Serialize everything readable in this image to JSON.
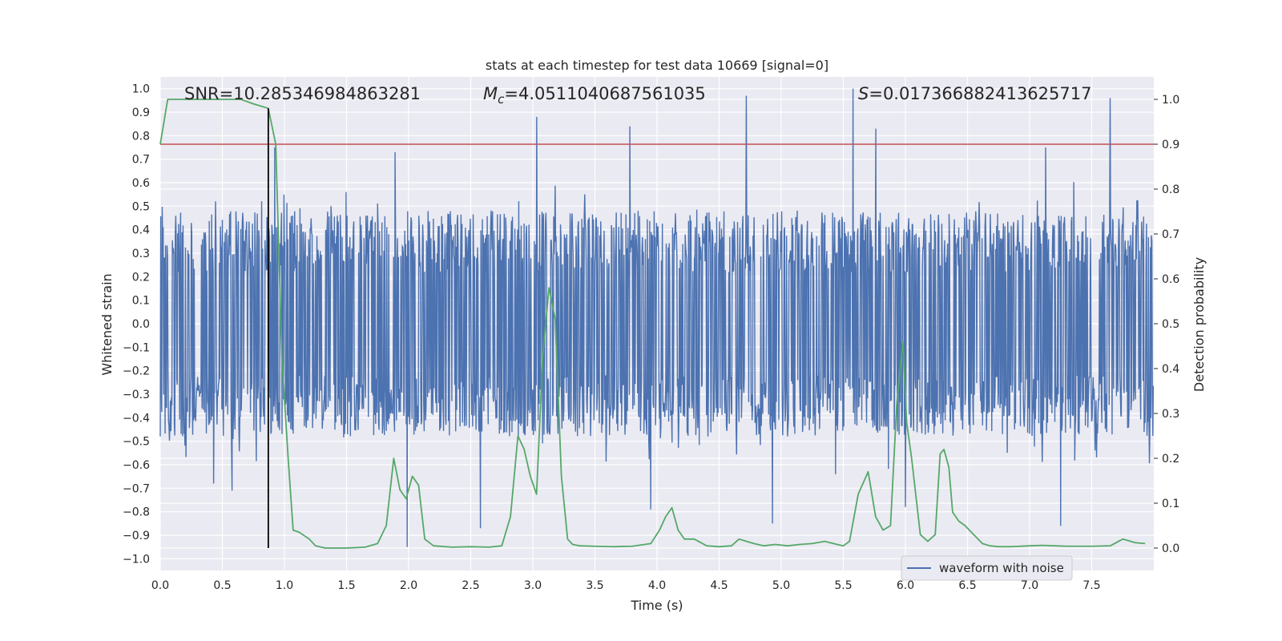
{
  "chart_data": {
    "type": "line",
    "title": "stats at each timestep for test data 10669 [signal=0]",
    "xlabel": "Time (s)",
    "ylabel_left": "Whitened strain",
    "ylabel_right": "Detection probability",
    "xlim": [
      0,
      8
    ],
    "ylim_left": [
      -1.05,
      1.05
    ],
    "ylim_right": [
      -0.05,
      1.05
    ],
    "x_ticks": [
      "0.0",
      "0.5",
      "1.0",
      "1.5",
      "2.0",
      "2.5",
      "3.0",
      "3.5",
      "4.0",
      "4.5",
      "5.0",
      "5.5",
      "6.0",
      "6.5",
      "7.0",
      "7.5"
    ],
    "x_tick_values": [
      0,
      0.5,
      1,
      1.5,
      2,
      2.5,
      3,
      3.5,
      4,
      4.5,
      5,
      5.5,
      6,
      6.5,
      7,
      7.5
    ],
    "y_ticks_left": [
      "1.0",
      "0.9",
      "0.8",
      "0.7",
      "0.6",
      "0.5",
      "0.4",
      "0.3",
      "0.2",
      "0.1",
      "0.0",
      "−0.1",
      "−0.2",
      "−0.3",
      "−0.4",
      "−0.5",
      "−0.6",
      "−0.7",
      "−0.8",
      "−0.9",
      "−1.0"
    ],
    "y_tick_values_left": [
      1,
      0.9,
      0.8,
      0.7,
      0.6,
      0.5,
      0.4,
      0.3,
      0.2,
      0.1,
      0,
      -0.1,
      -0.2,
      -0.3,
      -0.4,
      -0.5,
      -0.6,
      -0.7,
      -0.8,
      -0.9,
      -1
    ],
    "y_ticks_right": [
      "1.0",
      "0.9",
      "0.8",
      "0.7",
      "0.6",
      "0.5",
      "0.4",
      "0.3",
      "0.2",
      "0.1",
      "0.0"
    ],
    "y_tick_values_right": [
      1,
      0.9,
      0.8,
      0.7,
      0.6,
      0.5,
      0.4,
      0.3,
      0.2,
      0.1,
      0
    ],
    "grid": true,
    "legend_position": "bottom-right",
    "annotations": {
      "snr": "SNR=10.285346984863281",
      "mc_symbol": "M",
      "mc_subscript": "c",
      "mc_value": "=4.0511040687561035",
      "s_symbol": "S",
      "s_value": "=0.017366882413625717"
    },
    "threshold": {
      "value": 0.9,
      "axis": "right",
      "color": "#c44e52"
    },
    "marker_line": {
      "x": 0.87,
      "y_range_right": [
        0,
        0.98
      ],
      "color": "#000000"
    },
    "series": [
      {
        "name": "waveform with noise",
        "axis": "left",
        "color": "#4c72b0",
        "kind": "dense-noise",
        "n_samples": 2048,
        "peaks": [
          {
            "x": 3.03,
            "y": 0.88
          },
          {
            "x": 3.78,
            "y": 0.84
          },
          {
            "x": 4.72,
            "y": 0.97
          },
          {
            "x": 5.58,
            "y": 1.0
          },
          {
            "x": 5.76,
            "y": 0.83
          },
          {
            "x": 7.65,
            "y": 0.96
          },
          {
            "x": 1.89,
            "y": 0.73
          },
          {
            "x": 0.92,
            "y": 0.75
          },
          {
            "x": 7.13,
            "y": 0.75
          }
        ],
        "troughs": [
          {
            "x": 1.99,
            "y": -0.95
          },
          {
            "x": 2.58,
            "y": -0.87
          },
          {
            "x": 4.93,
            "y": -0.85
          },
          {
            "x": 7.25,
            "y": -0.86
          },
          {
            "x": 6.0,
            "y": -0.78
          },
          {
            "x": 3.95,
            "y": -0.79
          },
          {
            "x": 0.58,
            "y": -0.71
          },
          {
            "x": 0.43,
            "y": -0.68
          }
        ]
      },
      {
        "name": "",
        "axis": "right",
        "color": "#55a868",
        "x": [
          0.0,
          0.06,
          0.15,
          0.35,
          0.55,
          0.65,
          0.75,
          0.87,
          0.93,
          0.98,
          1.03,
          1.07,
          1.12,
          1.2,
          1.25,
          1.33,
          1.5,
          1.65,
          1.75,
          1.82,
          1.88,
          1.93,
          1.98,
          2.03,
          2.08,
          2.13,
          2.2,
          2.35,
          2.5,
          2.65,
          2.75,
          2.82,
          2.88,
          2.93,
          2.98,
          3.03,
          3.08,
          3.13,
          3.18,
          3.23,
          3.28,
          3.32,
          3.38,
          3.5,
          3.65,
          3.8,
          3.95,
          4.02,
          4.07,
          4.12,
          4.17,
          4.22,
          4.3,
          4.4,
          4.5,
          4.6,
          4.66,
          4.72,
          4.78,
          4.86,
          4.95,
          5.05,
          5.15,
          5.25,
          5.35,
          5.45,
          5.5,
          5.55,
          5.62,
          5.7,
          5.76,
          5.82,
          5.88,
          5.93,
          5.98,
          6.01,
          6.05,
          6.12,
          6.18,
          6.24,
          6.28,
          6.31,
          6.35,
          6.38,
          6.43,
          6.48,
          6.55,
          6.62,
          6.68,
          6.75,
          6.85,
          7.0,
          7.1,
          7.2,
          7.3,
          7.5,
          7.65,
          7.75,
          7.85,
          7.93
        ],
        "values": [
          0.9,
          1.0,
          1.0,
          1.0,
          1.0,
          1.0,
          0.99,
          0.98,
          0.9,
          0.42,
          0.2,
          0.04,
          0.035,
          0.02,
          0.005,
          0.0,
          0.0,
          0.002,
          0.01,
          0.05,
          0.2,
          0.13,
          0.11,
          0.16,
          0.14,
          0.02,
          0.005,
          0.002,
          0.003,
          0.002,
          0.005,
          0.07,
          0.25,
          0.22,
          0.16,
          0.12,
          0.43,
          0.58,
          0.51,
          0.16,
          0.02,
          0.008,
          0.005,
          0.004,
          0.003,
          0.004,
          0.01,
          0.04,
          0.07,
          0.09,
          0.04,
          0.02,
          0.02,
          0.005,
          0.003,
          0.005,
          0.02,
          0.015,
          0.01,
          0.005,
          0.008,
          0.005,
          0.008,
          0.01,
          0.015,
          0.008,
          0.005,
          0.015,
          0.12,
          0.17,
          0.07,
          0.04,
          0.05,
          0.32,
          0.46,
          0.28,
          0.2,
          0.03,
          0.015,
          0.03,
          0.21,
          0.22,
          0.18,
          0.08,
          0.06,
          0.05,
          0.03,
          0.01,
          0.005,
          0.003,
          0.003,
          0.005,
          0.006,
          0.005,
          0.004,
          0.004,
          0.005,
          0.02,
          0.012,
          0.01
        ]
      }
    ]
  }
}
